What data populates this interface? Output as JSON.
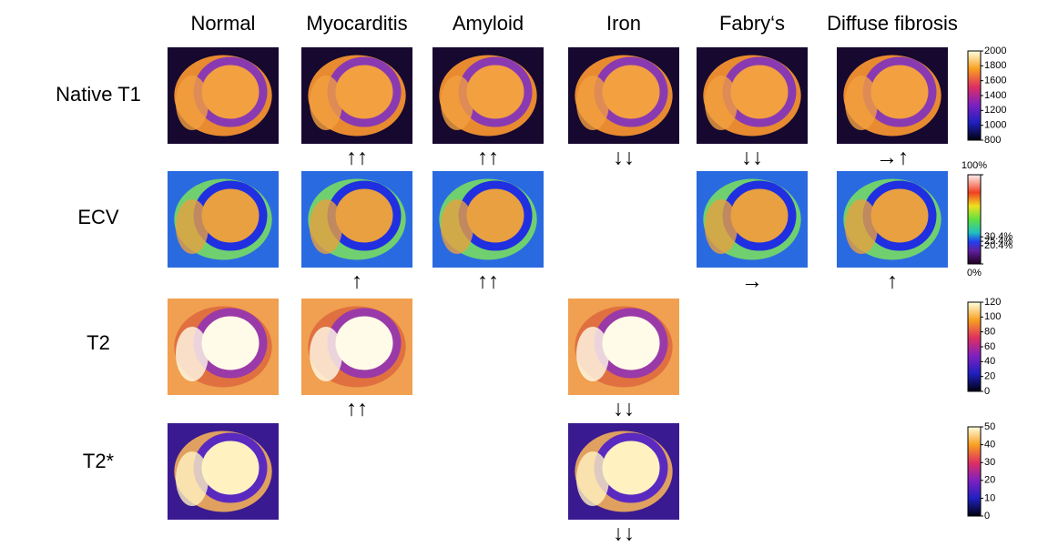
{
  "columns": [
    "Normal",
    "Myocarditis",
    "Amyloid",
    "Iron",
    "Fabry‘s",
    "Diffuse fibrosis"
  ],
  "rows": [
    {
      "label": "Native T1",
      "cells": [
        {
          "col": 0
        },
        {
          "col": 1,
          "arrow": "↑↑"
        },
        {
          "col": 2,
          "arrow": "↑↑"
        },
        {
          "col": 3,
          "arrow": "↓↓"
        },
        {
          "col": 4,
          "arrow": "↓↓"
        },
        {
          "col": 5,
          "arrow": "→↑"
        }
      ],
      "colorbar": {
        "lim": [
          800,
          2000
        ],
        "ticks": [
          2000,
          1800,
          1600,
          1400,
          1200,
          1000,
          800
        ]
      }
    },
    {
      "label": "ECV",
      "cells": [
        {
          "col": 0
        },
        {
          "col": 1,
          "arrow": "↑"
        },
        {
          "col": 2,
          "arrow": "↑↑"
        },
        {
          "col": 4,
          "arrow": "→"
        },
        {
          "col": 5,
          "arrow": "↑"
        }
      ],
      "colorbar": {
        "lim": [
          0,
          100
        ],
        "ticks": [
          {
            "value": 100,
            "label": "100%"
          },
          {
            "value": 30.4,
            "label": "30.4%"
          },
          {
            "value": 25.4,
            "label": "25.4%"
          },
          {
            "value": 20.4,
            "label": "20.4%"
          },
          {
            "value": 0,
            "label": "0%"
          }
        ]
      }
    },
    {
      "label": "T2",
      "cells": [
        {
          "col": 0
        },
        {
          "col": 1,
          "arrow": "↑↑"
        },
        {
          "col": 3,
          "arrow": "↓↓"
        }
      ],
      "colorbar": {
        "lim": [
          0,
          120
        ],
        "ticks": [
          120,
          100,
          80,
          60,
          40,
          20,
          0
        ]
      }
    },
    {
      "label": "T2*",
      "cells": [
        {
          "col": 0
        },
        {
          "col": 3,
          "arrow": "↓↓"
        }
      ],
      "colorbar": {
        "lim": [
          0,
          50
        ],
        "ticks": [
          50,
          40,
          30,
          20,
          10,
          0
        ]
      }
    }
  ]
}
